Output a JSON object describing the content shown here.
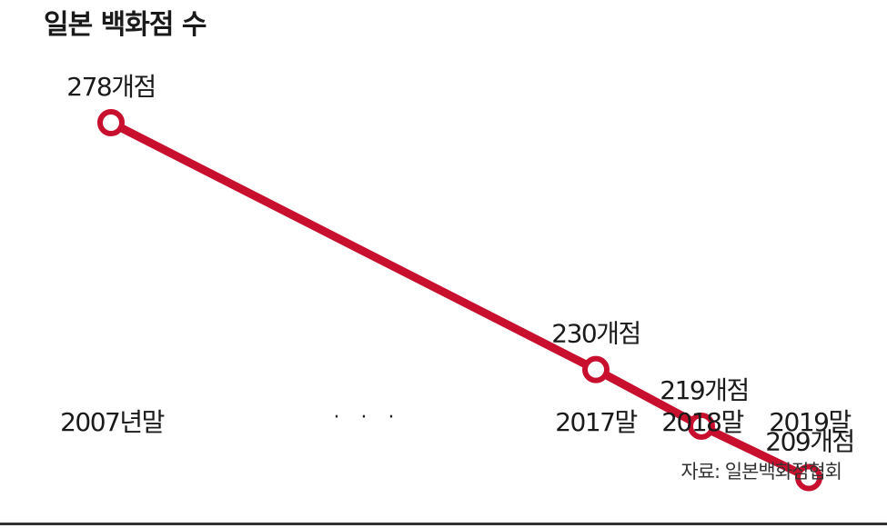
{
  "chart_data": {
    "type": "line",
    "title": "일본 백화점 수",
    "categories": [
      "2007년말",
      "2017말",
      "2018말",
      "2019말"
    ],
    "values": [
      278,
      230,
      219,
      209
    ],
    "data_labels": [
      "278개점",
      "230개점",
      "219개점",
      "209개점"
    ],
    "axis_break_label": "· · ·",
    "source": "자료: 일본백화점협회",
    "xlabel": "",
    "ylabel": "",
    "grid": false,
    "colors": {
      "line": "#c8102e",
      "marker_fill": "#ffffff"
    }
  }
}
